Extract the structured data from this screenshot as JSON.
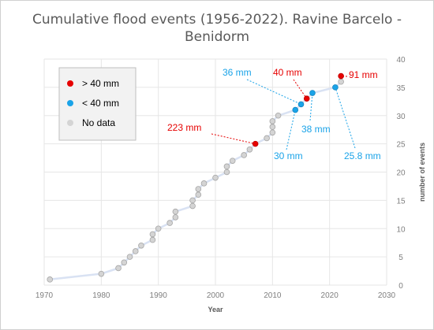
{
  "chart_data": {
    "type": "line",
    "title_lines": [
      "Cumulative flood events (1956-2022). Ravine Barcelo -",
      "Benidorm"
    ],
    "xlabel": "Year",
    "ylabel": "number of events",
    "xlim": [
      1970,
      2030
    ],
    "ylim": [
      0,
      40
    ],
    "x_ticks": [
      "1970",
      "1980",
      "1990",
      "2000",
      "2010",
      "2020",
      "2030"
    ],
    "y_ticks": [
      "0",
      "5",
      "10",
      "15",
      "20",
      "25",
      "30",
      "35",
      "40"
    ],
    "y_axis_side": "right",
    "grid": true,
    "line_color": "#d9e2f3",
    "legend": {
      "placement": "top-left",
      "entries": [
        {
          "label": "> 40 mm",
          "color": "#e60000"
        },
        {
          "label": "< 40 mm",
          "color": "#1aa3e8"
        },
        {
          "label": "No data",
          "color": "#d4d4d4"
        }
      ]
    },
    "series": [
      {
        "category": "no-data",
        "x": 1971,
        "y": 1
      },
      {
        "category": "no-data",
        "x": 1980,
        "y": 2
      },
      {
        "category": "no-data",
        "x": 1983,
        "y": 3
      },
      {
        "category": "no-data",
        "x": 1984,
        "y": 4
      },
      {
        "category": "no-data",
        "x": 1985,
        "y": 5
      },
      {
        "category": "no-data",
        "x": 1986,
        "y": 6
      },
      {
        "category": "no-data",
        "x": 1987,
        "y": 7
      },
      {
        "category": "no-data",
        "x": 1989,
        "y": 8
      },
      {
        "category": "no-data",
        "x": 1989,
        "y": 9
      },
      {
        "category": "no-data",
        "x": 1990,
        "y": 10
      },
      {
        "category": "no-data",
        "x": 1992,
        "y": 11
      },
      {
        "category": "no-data",
        "x": 1993,
        "y": 12
      },
      {
        "category": "no-data",
        "x": 1993,
        "y": 13
      },
      {
        "category": "no-data",
        "x": 1996,
        "y": 14
      },
      {
        "category": "no-data",
        "x": 1996,
        "y": 15
      },
      {
        "category": "no-data",
        "x": 1997,
        "y": 16
      },
      {
        "category": "no-data",
        "x": 1997,
        "y": 17
      },
      {
        "category": "no-data",
        "x": 1998,
        "y": 18
      },
      {
        "category": "no-data",
        "x": 2000,
        "y": 19
      },
      {
        "category": "no-data",
        "x": 2002,
        "y": 20
      },
      {
        "category": "no-data",
        "x": 2002,
        "y": 21
      },
      {
        "category": "no-data",
        "x": 2003,
        "y": 22
      },
      {
        "category": "no-data",
        "x": 2005,
        "y": 23
      },
      {
        "category": "no-data",
        "x": 2006,
        "y": 24
      },
      {
        "category": "above-40",
        "x": 2007,
        "y": 25
      },
      {
        "category": "no-data",
        "x": 2009,
        "y": 26
      },
      {
        "category": "no-data",
        "x": 2010,
        "y": 27
      },
      {
        "category": "no-data",
        "x": 2010,
        "y": 28
      },
      {
        "category": "no-data",
        "x": 2010,
        "y": 29
      },
      {
        "category": "no-data",
        "x": 2011,
        "y": 30
      },
      {
        "category": "below-40",
        "x": 2014,
        "y": 31
      },
      {
        "category": "below-40",
        "x": 2015,
        "y": 32
      },
      {
        "category": "above-40",
        "x": 2016,
        "y": 33
      },
      {
        "category": "below-40",
        "x": 2017,
        "y": 34
      },
      {
        "category": "below-40",
        "x": 2021,
        "y": 35
      },
      {
        "category": "no-data",
        "x": 2022,
        "y": 36
      },
      {
        "category": "above-40",
        "x": 2022,
        "y": 37
      }
    ],
    "annotations": [
      {
        "text": "223 mm",
        "color": "#e60000",
        "point_index": 24
      },
      {
        "text": "30 mm",
        "color": "#1aa3e8",
        "point_index": 30
      },
      {
        "text": "36 mm",
        "color": "#1aa3e8",
        "point_index": 31
      },
      {
        "text": "40 mm",
        "color": "#e60000",
        "point_index": 32
      },
      {
        "text": "38 mm",
        "color": "#1aa3e8",
        "point_index": 33
      },
      {
        "text": "25.8 mm",
        "color": "#1aa3e8",
        "point_index": 34
      },
      {
        "text": "91 mm",
        "color": "#e60000",
        "point_index": 36
      }
    ]
  }
}
